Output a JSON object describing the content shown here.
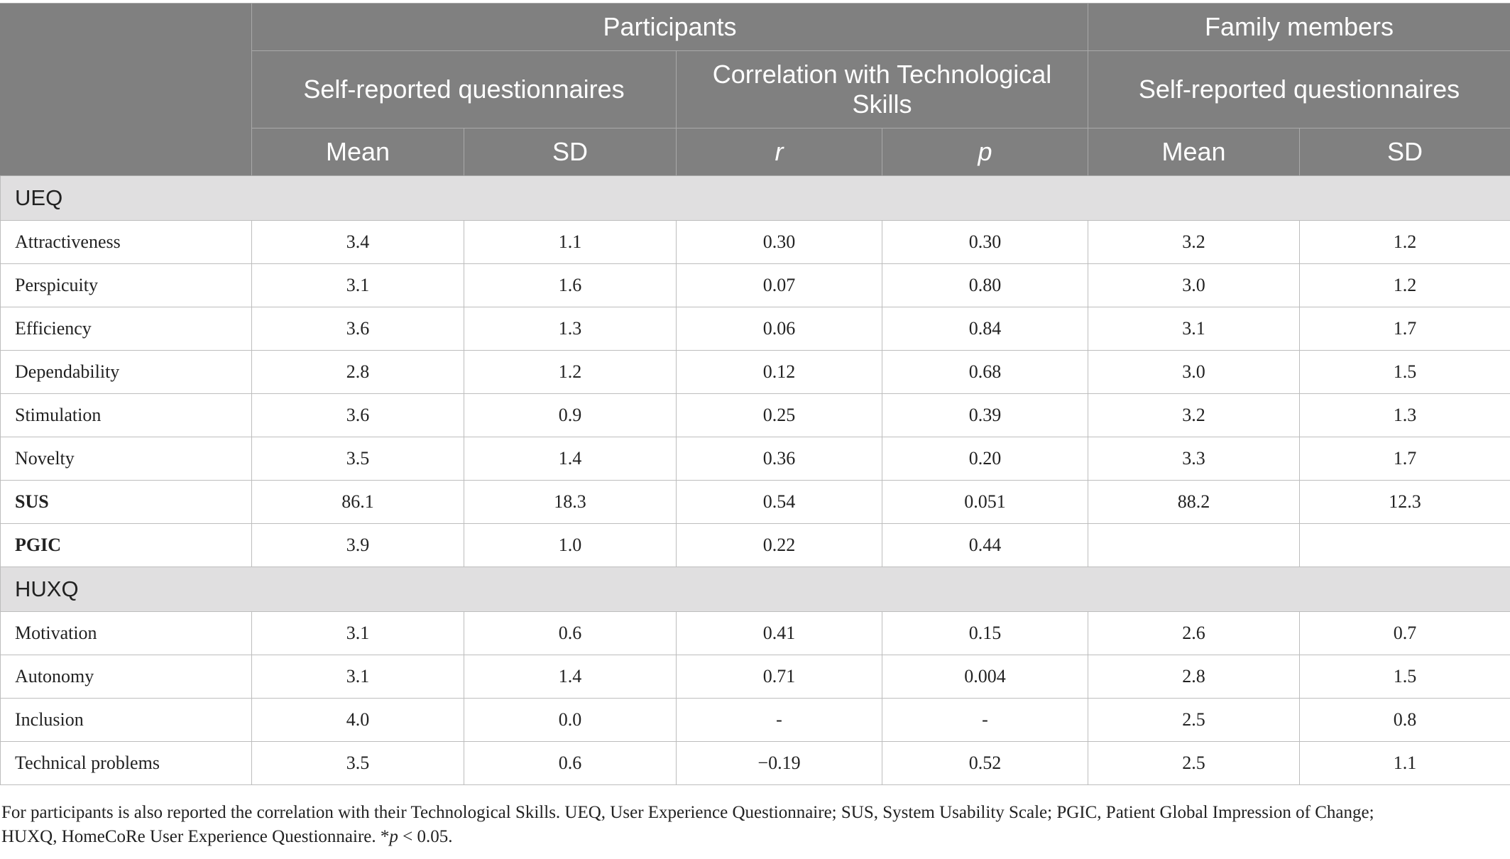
{
  "header": {
    "participants": "Participants",
    "family_members": "Family members",
    "self_reported": "Self-reported questionnaires",
    "correlation": "Correlation with Technological Skills",
    "family_self_reported": "Self-reported questionnaires",
    "mean": "Mean",
    "sd": "SD",
    "r": "r",
    "p": "p",
    "family_mean": "Mean",
    "family_sd": "SD"
  },
  "sections": [
    {
      "title": "UEQ",
      "rows": [
        {
          "label": "Attractiveness",
          "bold": false,
          "mean": "3.4",
          "sd": "1.1",
          "r": "0.30",
          "p": "0.30",
          "fam_mean": "3.2",
          "fam_sd": "1.2"
        },
        {
          "label": "Perspicuity",
          "bold": false,
          "mean": "3.1",
          "sd": "1.6",
          "r": "0.07",
          "p": "0.80",
          "fam_mean": "3.0",
          "fam_sd": "1.2"
        },
        {
          "label": "Efficiency",
          "bold": false,
          "mean": "3.6",
          "sd": "1.3",
          "r": "0.06",
          "p": "0.84",
          "fam_mean": "3.1",
          "fam_sd": "1.7"
        },
        {
          "label": "Dependability",
          "bold": false,
          "mean": "2.8",
          "sd": "1.2",
          "r": "0.12",
          "p": "0.68",
          "fam_mean": "3.0",
          "fam_sd": "1.5"
        },
        {
          "label": "Stimulation",
          "bold": false,
          "mean": "3.6",
          "sd": "0.9",
          "r": "0.25",
          "p": "0.39",
          "fam_mean": "3.2",
          "fam_sd": "1.3"
        },
        {
          "label": "Novelty",
          "bold": false,
          "mean": "3.5",
          "sd": "1.4",
          "r": "0.36",
          "p": "0.20",
          "fam_mean": "3.3",
          "fam_sd": "1.7"
        },
        {
          "label": "SUS",
          "bold": true,
          "mean": "86.1",
          "sd": "18.3",
          "r": "0.54",
          "p": "0.051",
          "fam_mean": "88.2",
          "fam_sd": "12.3"
        },
        {
          "label": "PGIC",
          "bold": true,
          "mean": "3.9",
          "sd": "1.0",
          "r": "0.22",
          "p": "0.44",
          "fam_mean": "",
          "fam_sd": ""
        }
      ]
    },
    {
      "title": "HUXQ",
      "rows": [
        {
          "label": "Motivation",
          "bold": false,
          "mean": "3.1",
          "sd": "0.6",
          "r": "0.41",
          "p": "0.15",
          "fam_mean": "2.6",
          "fam_sd": "0.7"
        },
        {
          "label": "Autonomy",
          "bold": false,
          "mean": "3.1",
          "sd": "1.4",
          "r": "0.71",
          "p": "0.004",
          "fam_mean": "2.8",
          "fam_sd": "1.5"
        },
        {
          "label": "Inclusion",
          "bold": false,
          "mean": "4.0",
          "sd": "0.0",
          "r": "-",
          "p": "-",
          "fam_mean": "2.5",
          "fam_sd": "0.8"
        },
        {
          "label": "Technical problems",
          "bold": false,
          "mean": "3.5",
          "sd": "0.6",
          "r": "−0.19",
          "p": "0.52",
          "fam_mean": "2.5",
          "fam_sd": "1.1"
        }
      ]
    }
  ],
  "footnote": {
    "line1": "For participants is also reported the correlation with their Technological Skills. UEQ, User Experience Questionnaire; SUS, System Usability Scale; PGIC, Patient Global Impression of Change;",
    "line2_prefix": "HUXQ, HomeCoRe User Experience Questionnaire. *",
    "line2_p": "p",
    "line2_suffix": " < 0.05."
  }
}
